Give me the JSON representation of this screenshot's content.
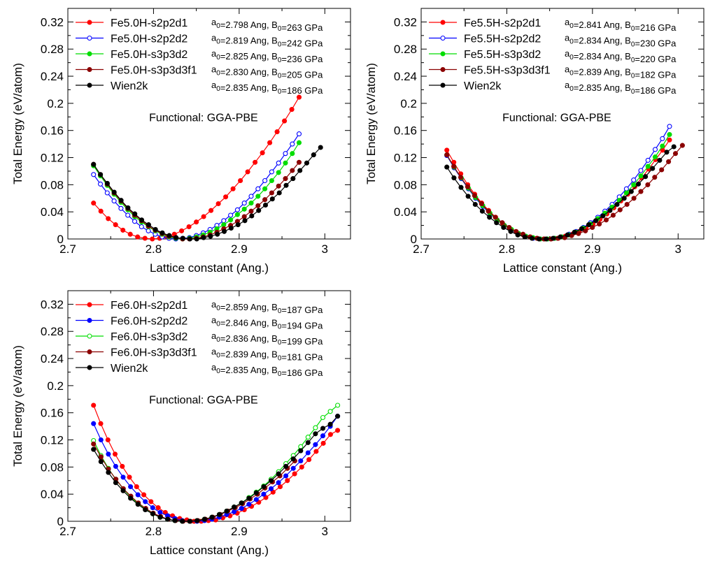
{
  "chart_data": [
    {
      "type": "line",
      "xlabel": "Lattice constant (Ang.)",
      "ylabel": "Total Energy (eV/atom)",
      "xlim": [
        2.7,
        3.03
      ],
      "ylim": [
        0,
        0.34
      ],
      "xticks": [
        "2.7",
        "2.8",
        "2.9",
        "3"
      ],
      "yticks": [
        "0",
        "0.04",
        "0.08",
        "0.12",
        "0.16",
        "0.2",
        "0.24",
        "0.28",
        "0.32"
      ],
      "annotation": "Functional: GGA-PBE",
      "legend_position": "top-left",
      "series": [
        {
          "name": "Fe5.0H-s2p2d1",
          "fit": "a0=2.798 Ang, B0=263 GPa",
          "color": "#ff0000",
          "marker": "filled",
          "a0": 2.798,
          "B0": 263,
          "x_start": 2.73,
          "x_end": 2.97,
          "values": [
            0.053,
            0.041,
            0.03,
            0.021,
            0.013,
            0.007,
            0.003,
            0.001,
            0.0,
            0.001,
            0.003,
            0.007,
            0.012,
            0.018,
            0.025,
            0.033,
            0.042,
            0.052,
            0.062,
            0.074,
            0.086,
            0.099,
            0.113,
            0.127,
            0.142,
            0.158,
            0.174,
            0.191,
            0.209
          ]
        },
        {
          "name": "Fe5.0H-s2p2d2",
          "fit": "a0=2.819 Ang, B0=242 GPa",
          "color": "#0000ff",
          "marker": "open",
          "a0": 2.819,
          "B0": 242,
          "x_start": 2.73,
          "x_end": 2.97,
          "values": [
            0.095,
            0.081,
            0.068,
            0.056,
            0.045,
            0.035,
            0.026,
            0.018,
            0.012,
            0.007,
            0.003,
            0.001,
            0.0,
            0.001,
            0.002,
            0.005,
            0.009,
            0.014,
            0.02,
            0.027,
            0.035,
            0.043,
            0.053,
            0.063,
            0.074,
            0.086,
            0.099,
            0.112,
            0.126,
            0.14,
            0.155
          ]
        },
        {
          "name": "Fe5.0H-s3p3d2",
          "fit": "a0=2.825 Ang, B0=236 GPa",
          "color": "#00dd00",
          "marker": "filled",
          "a0": 2.825,
          "B0": 236,
          "x_start": 2.73,
          "x_end": 2.97,
          "values": [
            0.108,
            0.093,
            0.079,
            0.066,
            0.054,
            0.043,
            0.033,
            0.025,
            0.018,
            0.012,
            0.007,
            0.003,
            0.001,
            0.0,
            0.001,
            0.003,
            0.006,
            0.01,
            0.015,
            0.021,
            0.028,
            0.036,
            0.044,
            0.053,
            0.063,
            0.074,
            0.086,
            0.098,
            0.112,
            0.126,
            0.142
          ]
        },
        {
          "name": "Fe5.0H-s3p3d3f1",
          "fit": "a0=2.830 Ang, B0=205 GPa",
          "color": "#8b0000",
          "marker": "filled",
          "a0": 2.83,
          "B0": 205,
          "x_start": 2.73,
          "x_end": 2.97,
          "values": [
            0.11,
            0.095,
            0.081,
            0.068,
            0.056,
            0.045,
            0.035,
            0.027,
            0.019,
            0.013,
            0.008,
            0.004,
            0.002,
            0.0,
            0.0,
            0.001,
            0.003,
            0.006,
            0.01,
            0.015,
            0.02,
            0.026,
            0.033,
            0.041,
            0.049,
            0.058,
            0.068,
            0.078,
            0.089,
            0.101,
            0.113
          ]
        },
        {
          "name": "Wien2k",
          "fit": "a0=2.835 Ang, B0=186 GPa",
          "color": "#000000",
          "marker": "filled",
          "a0": 2.835,
          "B0": 186,
          "x_start": 2.73,
          "x_end": 2.995,
          "values": [
            0.11,
            0.095,
            0.082,
            0.069,
            0.057,
            0.046,
            0.037,
            0.028,
            0.021,
            0.014,
            0.009,
            0.005,
            0.002,
            0.001,
            0.0,
            0.0,
            0.002,
            0.004,
            0.007,
            0.011,
            0.016,
            0.021,
            0.027,
            0.034,
            0.042,
            0.05,
            0.059,
            0.068,
            0.079,
            0.089,
            0.101,
            0.112,
            0.124,
            0.135
          ]
        }
      ]
    },
    {
      "type": "line",
      "xlabel": "Lattice constant (Ang.)",
      "ylabel": "Total Energy (eV/atom)",
      "xlim": [
        2.7,
        3.03
      ],
      "ylim": [
        0,
        0.34
      ],
      "xticks": [
        "2.7",
        "2.8",
        "2.9",
        "3"
      ],
      "yticks": [
        "0",
        "0.04",
        "0.08",
        "0.12",
        "0.16",
        "0.2",
        "0.24",
        "0.28",
        "0.32"
      ],
      "annotation": "Functional: GGA-PBE",
      "legend_position": "top-left",
      "series": [
        {
          "name": "Fe5.5H-s2p2d1",
          "fit": "a0=2.841 Ang, B0=216 GPa",
          "color": "#ff0000",
          "marker": "filled",
          "a0": 2.841,
          "B0": 216,
          "x_start": 2.73,
          "x_end": 2.99,
          "values": [
            0.131,
            0.113,
            0.096,
            0.08,
            0.066,
            0.053,
            0.042,
            0.032,
            0.023,
            0.016,
            0.01,
            0.006,
            0.003,
            0.001,
            0.0,
            0.0,
            0.001,
            0.004,
            0.007,
            0.011,
            0.016,
            0.022,
            0.029,
            0.037,
            0.046,
            0.056,
            0.066,
            0.077,
            0.09,
            0.103,
            0.117,
            0.131,
            0.146
          ]
        },
        {
          "name": "Fe5.5H-s2p2d2",
          "fit": "a0=2.834 Ang, B0=230 GPa",
          "color": "#0000ff",
          "marker": "open",
          "a0": 2.834,
          "B0": 230,
          "x_start": 2.73,
          "x_end": 2.99,
          "values": [
            0.123,
            0.105,
            0.089,
            0.074,
            0.06,
            0.048,
            0.037,
            0.028,
            0.02,
            0.013,
            0.008,
            0.004,
            0.001,
            0.0,
            0.0,
            0.001,
            0.003,
            0.007,
            0.011,
            0.017,
            0.024,
            0.032,
            0.041,
            0.051,
            0.062,
            0.074,
            0.087,
            0.101,
            0.116,
            0.132,
            0.148,
            0.166
          ]
        },
        {
          "name": "Fe5.5H-s3p3d2",
          "fit": "a0=2.834 Ang, B0=220 GPa",
          "color": "#00dd00",
          "marker": "filled",
          "a0": 2.834,
          "B0": 220,
          "x_start": 2.73,
          "x_end": 2.99,
          "values": [
            0.124,
            0.106,
            0.09,
            0.075,
            0.061,
            0.049,
            0.038,
            0.028,
            0.02,
            0.014,
            0.008,
            0.004,
            0.002,
            0.0,
            0.0,
            0.001,
            0.003,
            0.006,
            0.01,
            0.016,
            0.022,
            0.03,
            0.038,
            0.047,
            0.057,
            0.068,
            0.08,
            0.093,
            0.107,
            0.121,
            0.137,
            0.154
          ]
        },
        {
          "name": "Fe5.5H-s3p3d3f1",
          "fit": "a0=2.839 Ang, B0=182 GPa",
          "color": "#8b0000",
          "marker": "filled",
          "a0": 2.839,
          "B0": 182,
          "x_start": 2.73,
          "x_end": 3.005,
          "values": [
            0.124,
            0.107,
            0.091,
            0.077,
            0.064,
            0.052,
            0.041,
            0.032,
            0.024,
            0.017,
            0.011,
            0.007,
            0.003,
            0.001,
            0.0,
            0.0,
            0.001,
            0.002,
            0.005,
            0.008,
            0.012,
            0.017,
            0.022,
            0.028,
            0.035,
            0.043,
            0.051,
            0.06,
            0.07,
            0.08,
            0.091,
            0.102,
            0.114,
            0.126,
            0.138
          ]
        },
        {
          "name": "Wien2k",
          "fit": "a0=2.835 Ang, B0=186 GPa",
          "color": "#000000",
          "marker": "filled",
          "a0": 2.835,
          "B0": 186,
          "x_start": 2.73,
          "x_end": 2.995,
          "values": [
            0.106,
            0.09,
            0.076,
            0.063,
            0.051,
            0.041,
            0.032,
            0.024,
            0.017,
            0.011,
            0.006,
            0.003,
            0.001,
            0.0,
            0.0,
            0.001,
            0.003,
            0.006,
            0.01,
            0.015,
            0.021,
            0.027,
            0.034,
            0.042,
            0.051,
            0.06,
            0.07,
            0.081,
            0.092,
            0.104,
            0.116,
            0.128,
            0.136
          ]
        }
      ]
    },
    {
      "type": "line",
      "xlabel": "Lattice constant (Ang.)",
      "ylabel": "Total Energy (eV/atom)",
      "xlim": [
        2.7,
        3.03
      ],
      "ylim": [
        0,
        0.34
      ],
      "xticks": [
        "2.7",
        "2.8",
        "2.9",
        "3"
      ],
      "yticks": [
        "0",
        "0.04",
        "0.08",
        "0.12",
        "0.16",
        "0.2",
        "0.24",
        "0.28",
        "0.32"
      ],
      "annotation": "Functional: GGA-PBE",
      "legend_position": "top-left",
      "series": [
        {
          "name": "Fe6.0H-s2p2d1",
          "fit": "a0=2.859 Ang, B0=187 GPa",
          "color": "#ff0000",
          "marker": "filled",
          "a0": 2.859,
          "B0": 187,
          "x_start": 2.73,
          "x_end": 3.015,
          "values": [
            0.171,
            0.144,
            0.12,
            0.099,
            0.081,
            0.065,
            0.051,
            0.039,
            0.029,
            0.02,
            0.013,
            0.008,
            0.004,
            0.002,
            0.0,
            0.0,
            0.001,
            0.002,
            0.005,
            0.008,
            0.012,
            0.017,
            0.022,
            0.028,
            0.035,
            0.043,
            0.051,
            0.06,
            0.07,
            0.08,
            0.091,
            0.103,
            0.115,
            0.128,
            0.134
          ]
        },
        {
          "name": "Fe6.0H-s2p2d2",
          "fit": "a0=2.846 Ang, B0=194 GPa",
          "color": "#0000ff",
          "marker": "filled",
          "a0": 2.846,
          "B0": 194,
          "x_start": 2.73,
          "x_end": 3.015,
          "values": [
            0.144,
            0.12,
            0.099,
            0.081,
            0.065,
            0.051,
            0.039,
            0.029,
            0.02,
            0.013,
            0.008,
            0.004,
            0.001,
            0.0,
            0.0,
            0.001,
            0.003,
            0.006,
            0.01,
            0.014,
            0.019,
            0.025,
            0.032,
            0.04,
            0.048,
            0.057,
            0.067,
            0.078,
            0.089,
            0.101,
            0.113,
            0.126,
            0.14,
            0.155
          ]
        },
        {
          "name": "Fe6.0H-s3p3d2",
          "fit": "a0=2.836 Ang, B0=199 GPa",
          "color": "#00dd00",
          "marker": "open",
          "a0": 2.836,
          "B0": 199,
          "x_start": 2.73,
          "x_end": 3.015,
          "values": [
            0.119,
            0.097,
            0.078,
            0.062,
            0.048,
            0.036,
            0.026,
            0.018,
            0.011,
            0.006,
            0.003,
            0.001,
            0.0,
            0.0,
            0.001,
            0.003,
            0.006,
            0.01,
            0.015,
            0.021,
            0.027,
            0.035,
            0.043,
            0.052,
            0.062,
            0.073,
            0.085,
            0.097,
            0.11,
            0.124,
            0.138,
            0.153,
            0.162,
            0.171
          ]
        },
        {
          "name": "Fe6.0H-s3p3d3f1",
          "fit": "a0=2.839 Ang, B0=181 GPa",
          "color": "#8b0000",
          "marker": "filled",
          "a0": 2.839,
          "B0": 181,
          "x_start": 2.73,
          "x_end": 2.965,
          "values": [
            0.114,
            0.095,
            0.077,
            0.062,
            0.048,
            0.037,
            0.027,
            0.019,
            0.012,
            0.007,
            0.003,
            0.001,
            0.0,
            0.0,
            0.001,
            0.003,
            0.006,
            0.01,
            0.015,
            0.02,
            0.026,
            0.033,
            0.04,
            0.049,
            0.058,
            0.067,
            0.078,
            0.089
          ]
        },
        {
          "name": "Wien2k",
          "fit": "a0=2.835 Ang, B0=186 GPa",
          "color": "#000000",
          "marker": "filled",
          "a0": 2.835,
          "B0": 186,
          "x_start": 2.73,
          "x_end": 3.015,
          "values": [
            0.106,
            0.088,
            0.072,
            0.057,
            0.045,
            0.034,
            0.025,
            0.017,
            0.011,
            0.006,
            0.003,
            0.001,
            0.0,
            0.0,
            0.001,
            0.003,
            0.006,
            0.01,
            0.015,
            0.021,
            0.027,
            0.034,
            0.042,
            0.051,
            0.06,
            0.07,
            0.081,
            0.092,
            0.104,
            0.116,
            0.129,
            0.137,
            0.143,
            0.155
          ]
        }
      ]
    }
  ]
}
